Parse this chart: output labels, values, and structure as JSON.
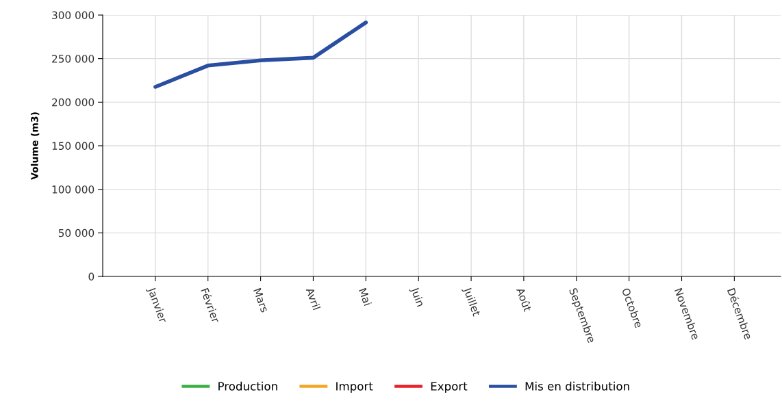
{
  "chart_data": {
    "type": "line",
    "ylabel": "Volume (m3)",
    "categories": [
      "Janvier",
      "Février",
      "Mars",
      "Avril",
      "Mai",
      "Juin",
      "Juillet",
      "Août",
      "Septembre",
      "Octobre",
      "Novembre",
      "Décembre"
    ],
    "series": [
      {
        "name": "Production",
        "color": "#3cb043",
        "values": [
          null,
          null,
          null,
          null,
          null,
          null,
          null,
          null,
          null,
          null,
          null,
          null
        ]
      },
      {
        "name": "Import",
        "color": "#f5a623",
        "values": [
          null,
          null,
          null,
          null,
          null,
          null,
          null,
          null,
          null,
          null,
          null,
          null
        ]
      },
      {
        "name": "Export",
        "color": "#e8202a",
        "values": [
          null,
          null,
          null,
          null,
          null,
          null,
          null,
          null,
          null,
          null,
          null,
          null
        ]
      },
      {
        "name": "Mis en distribution",
        "color": "#2a4fa0",
        "values": [
          217500,
          242000,
          248000,
          251000,
          291500,
          null,
          null,
          null,
          null,
          null,
          null,
          null
        ]
      }
    ],
    "ylim": [
      0,
      300000
    ],
    "yticks": [
      {
        "value": 0,
        "label": "0"
      },
      {
        "value": 50000,
        "label": "50 000"
      },
      {
        "value": 100000,
        "label": "100 000"
      },
      {
        "value": 150000,
        "label": "150 000"
      },
      {
        "value": 200000,
        "label": "200 000"
      },
      {
        "value": 250000,
        "label": "250 000"
      },
      {
        "value": 300000,
        "label": "300 000"
      }
    ],
    "grid": true,
    "legend": "bottom",
    "marker": "none",
    "line_style": "solid"
  }
}
